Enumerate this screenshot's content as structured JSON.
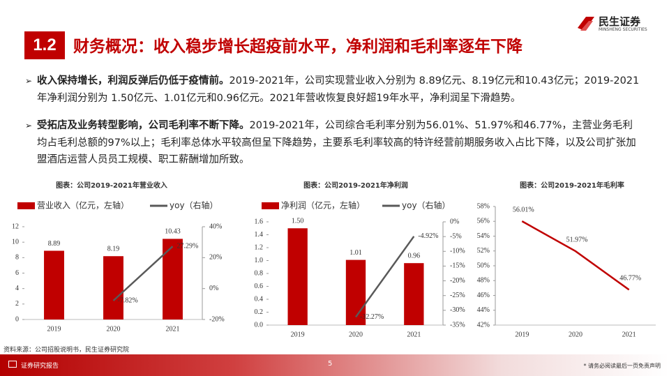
{
  "header": {
    "badge": "1.2",
    "title": "财务概况：收入稳步增长超疫前水平，净利润和毛利率逐年下降"
  },
  "logo": {
    "name": "民生证券",
    "sub": "MINSHENG SECURITIES"
  },
  "bullets": [
    {
      "bold": "收入保持增长，利润反弹后仍低于疫情前。",
      "text": "2019-2021年，公司实现营业收入分别为 8.89亿元、8.19亿元和10.43亿元；2019-2021年净利润分别为 1.50亿元、1.01亿元和0.96亿元。2021年营收恢复良好超19年水平，净利润呈下滑趋势。"
    },
    {
      "bold": "受拓店及业务转型影响，公司毛利率不断下降。",
      "text": "2019-2021年，公司综合毛利率分别为56.01%、51.97%和46.77%，主营业务毛利均占毛利总额的97%以上；毛利率总体水平较高但呈下降趋势，主要系毛利率较高的特许经营前期服务收入占比下降，以及公司扩张加盟酒店运营人员员工规模、职工薪酬增加所致。"
    }
  ],
  "chart_data": [
    {
      "type": "bar_line",
      "title": "图表：公司2019-2021年营业收入",
      "categories": [
        "2019",
        "2020",
        "2021"
      ],
      "legend": true,
      "series": [
        {
          "name": "营业收入（亿元，左轴）",
          "color": "#c00000",
          "type": "bar",
          "values": [
            8.89,
            8.19,
            10.43
          ]
        },
        {
          "name": "yoy（右轴）",
          "color": "#595959",
          "type": "line",
          "axis": "y2",
          "values": [
            null,
            -7.82,
            27.29
          ],
          "value_labels": [
            null,
            "-7.82%",
            "27.29%"
          ]
        }
      ],
      "ylim": [
        0,
        12
      ],
      "yticks": [
        0,
        2,
        4,
        6,
        8,
        10,
        12
      ],
      "y2lim": [
        -20,
        40
      ],
      "y2ticks": [
        {
          "value": -20,
          "label": "-20%"
        },
        {
          "value": 0,
          "label": "0%"
        },
        {
          "value": 20,
          "label": "20%"
        },
        {
          "value": 40,
          "label": "40%"
        }
      ]
    },
    {
      "type": "bar_line",
      "title": "图表：公司2019-2021年净利润",
      "categories": [
        "2019",
        "2020",
        "2021"
      ],
      "legend": true,
      "series": [
        {
          "name": "净利润（亿元，左轴）",
          "color": "#c00000",
          "type": "bar",
          "values": [
            1.5,
            1.01,
            0.96
          ],
          "value_labels": [
            "1.50",
            "1.01",
            "0.96"
          ]
        },
        {
          "name": "yoy（右轴）",
          "color": "#595959",
          "type": "line",
          "axis": "y2",
          "values": [
            null,
            -32.27,
            -4.92
          ],
          "value_labels": [
            null,
            "-32.27%",
            "-4.92%"
          ]
        }
      ],
      "ylim": [
        0,
        1.6
      ],
      "yticks": [
        {
          "value": 0,
          "label": "0.0"
        },
        0.2,
        0.4,
        0.6,
        0.8,
        {
          "value": 1,
          "label": "1.0"
        },
        1.2,
        1.4,
        1.6
      ],
      "y2lim": [
        -35,
        0
      ],
      "y2ticks": [
        {
          "value": -35,
          "label": "-35%"
        },
        {
          "value": -30,
          "label": "-30%"
        },
        {
          "value": -25,
          "label": "-25%"
        },
        {
          "value": -20,
          "label": "-20%"
        },
        {
          "value": -15,
          "label": "-15%"
        },
        {
          "value": -10,
          "label": "-10%"
        },
        {
          "value": -5,
          "label": "-5%"
        },
        {
          "value": 0,
          "label": "0%"
        }
      ]
    },
    {
      "type": "line",
      "title": "图表：公司2019-2021年毛利率",
      "categories": [
        "2019",
        "2020",
        "2021"
      ],
      "legend": false,
      "series": [
        {
          "name": "毛利率",
          "color": "#c00000",
          "type": "line",
          "values": [
            56.01,
            51.97,
            46.77
          ],
          "value_labels": [
            "56.01%",
            "51.97%",
            "46.77%"
          ]
        }
      ],
      "ylim": [
        42,
        58
      ],
      "yticks": [
        {
          "value": 42,
          "label": "42%"
        },
        {
          "value": 44,
          "label": "44%"
        },
        {
          "value": 46,
          "label": "46%"
        },
        {
          "value": 48,
          "label": "48%"
        },
        {
          "value": 50,
          "label": "50%"
        },
        {
          "value": 52,
          "label": "52%"
        },
        {
          "value": 54,
          "label": "54%"
        },
        {
          "value": 56,
          "label": "56%"
        },
        {
          "value": 58,
          "label": "58%"
        }
      ]
    }
  ],
  "source": "资料来源：公司招股说明书，民生证券研究院",
  "footer": {
    "left": "证券研究报告",
    "page": "5",
    "right": "* 请务必阅读最后一页免责声明"
  }
}
